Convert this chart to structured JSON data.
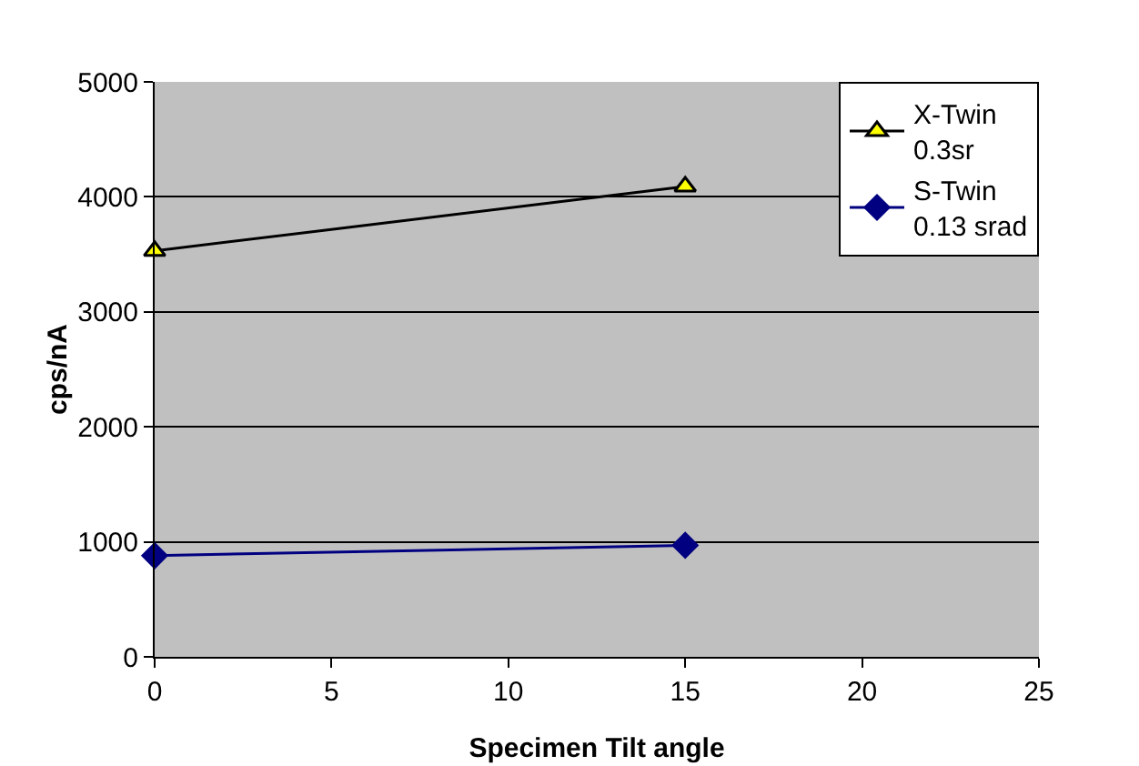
{
  "chart_data": {
    "type": "line",
    "xlabel": "Specimen Tilt angle",
    "ylabel": "cps/nA",
    "xlim": [
      0,
      25
    ],
    "xticks": [
      0,
      5,
      10,
      15,
      20,
      25
    ],
    "ylim": [
      0,
      5000
    ],
    "yticks": [
      0,
      1000,
      2000,
      3000,
      4000,
      5000
    ],
    "x": [
      0,
      15
    ],
    "grid": "y",
    "legend": "top right",
    "series": [
      {
        "name": "X-Twin\n0.3sr",
        "color": "#000000",
        "marker": "triangle",
        "colors": [
          "#ffff00",
          "#ffff00"
        ],
        "values": [
          3530,
          4090
        ]
      },
      {
        "name": "S-Twin\n0.13 srad",
        "color": "#000080",
        "marker": "diamond",
        "values": [
          880,
          970
        ]
      }
    ]
  }
}
